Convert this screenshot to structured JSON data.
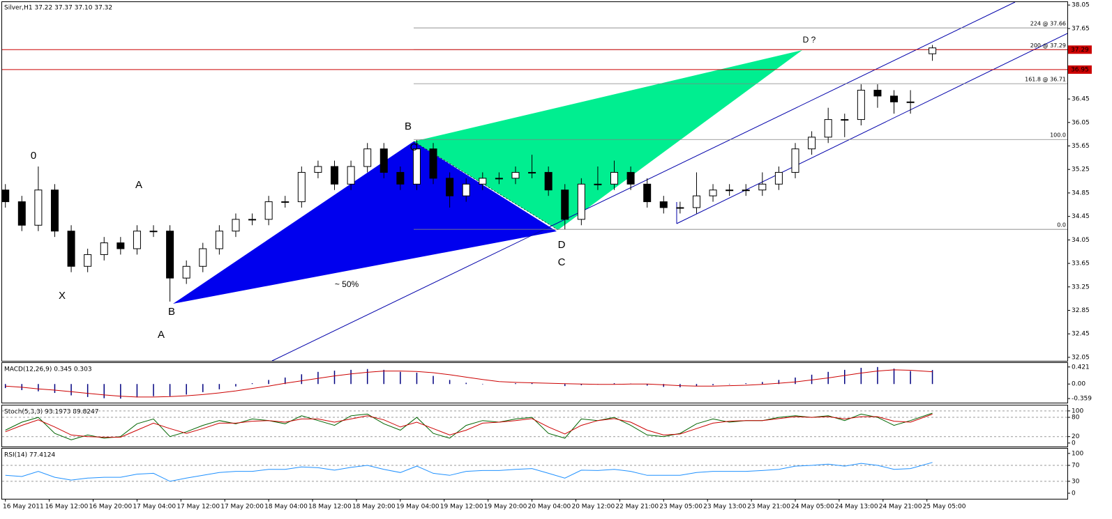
{
  "chart_data": [
    {
      "type": "candlestick",
      "title": "Silver,H1  37.22 37.37 37.10 37.32",
      "x": [
        0,
        3,
        6,
        9,
        12,
        15,
        18,
        21,
        24,
        27,
        30,
        33,
        36,
        39,
        42,
        45,
        48,
        51,
        54,
        57,
        60,
        63,
        66,
        69,
        72,
        75,
        78,
        81,
        84,
        87,
        90,
        93,
        96,
        99,
        102,
        105,
        108,
        111,
        114,
        117,
        120,
        123,
        126,
        129,
        132,
        135,
        138,
        141,
        144,
        147,
        150,
        153,
        156,
        159,
        162,
        165,
        169
      ],
      "open": [
        34.9,
        34.7,
        34.3,
        34.9,
        34.2,
        33.6,
        33.8,
        34.0,
        33.9,
        34.2,
        34.2,
        33.4,
        33.6,
        33.9,
        34.2,
        34.4,
        34.4,
        34.7,
        34.7,
        35.2,
        35.3,
        35.0,
        35.3,
        35.6,
        35.2,
        35.0,
        35.6,
        35.1,
        34.8,
        35.0,
        35.1,
        35.1,
        35.2,
        35.2,
        34.9,
        34.4,
        35.0,
        35.0,
        35.2,
        35.0,
        34.7,
        34.6,
        34.6,
        34.8,
        34.9,
        34.9,
        34.9,
        35.0,
        35.2,
        35.6,
        35.8,
        36.1,
        36.1,
        36.6,
        36.5,
        36.4,
        37.22
      ],
      "high": [
        35.0,
        34.8,
        35.3,
        35.0,
        34.3,
        33.9,
        34.1,
        34.1,
        34.3,
        34.3,
        34.3,
        33.7,
        34.0,
        34.3,
        34.5,
        34.5,
        34.8,
        34.8,
        35.3,
        35.4,
        35.4,
        35.4,
        35.7,
        35.7,
        35.3,
        35.75,
        35.7,
        35.2,
        35.1,
        35.2,
        35.2,
        35.3,
        35.5,
        35.3,
        35.0,
        35.1,
        35.3,
        35.4,
        35.3,
        35.1,
        34.8,
        34.7,
        35.2,
        35.0,
        35.0,
        35.0,
        35.2,
        35.3,
        35.7,
        35.9,
        36.3,
        36.2,
        36.7,
        36.7,
        36.6,
        36.6,
        37.37
      ],
      "low": [
        34.6,
        34.2,
        34.2,
        34.1,
        33.5,
        33.5,
        33.7,
        33.8,
        33.8,
        34.1,
        33.0,
        33.3,
        33.5,
        33.8,
        34.1,
        34.3,
        34.3,
        34.6,
        34.6,
        35.1,
        34.9,
        34.9,
        35.2,
        35.1,
        34.9,
        34.9,
        35.0,
        34.6,
        34.7,
        34.9,
        35.0,
        35.0,
        35.1,
        34.8,
        34.23,
        34.3,
        34.9,
        34.9,
        34.9,
        34.6,
        34.5,
        34.5,
        34.5,
        34.7,
        34.8,
        34.8,
        34.8,
        34.9,
        35.1,
        35.5,
        35.7,
        35.8,
        36.0,
        36.3,
        36.2,
        36.2,
        37.1
      ],
      "close": [
        34.7,
        34.3,
        34.9,
        34.2,
        33.6,
        33.8,
        34.0,
        33.9,
        34.2,
        34.2,
        33.4,
        33.6,
        33.9,
        34.2,
        34.4,
        34.4,
        34.7,
        34.7,
        35.2,
        35.3,
        35.0,
        35.3,
        35.6,
        35.2,
        35.0,
        35.6,
        35.1,
        34.8,
        35.0,
        35.1,
        35.1,
        35.2,
        35.2,
        34.9,
        34.4,
        35.0,
        35.0,
        35.2,
        35.0,
        34.7,
        34.6,
        34.6,
        34.8,
        34.9,
        34.9,
        34.9,
        35.0,
        35.2,
        35.6,
        35.8,
        36.1,
        36.1,
        36.6,
        36.5,
        36.4,
        36.4,
        37.32
      ],
      "up_color": "#ffffff",
      "down_color": "#000000",
      "outline_color": "#000000",
      "xlim": [
        -0.6,
        193.6
      ],
      "ylim": [
        31.99,
        38.1
      ],
      "yticks": [
        32.05,
        32.45,
        32.85,
        33.25,
        33.65,
        34.05,
        34.45,
        34.85,
        35.25,
        35.65,
        36.05,
        36.45,
        37.65,
        38.05
      ],
      "xticks": [
        {
          "value": 0,
          "label": "16 May 2011"
        },
        {
          "value": 8,
          "label": "16 May 12:00"
        },
        {
          "value": 16,
          "label": "16 May 20:00"
        },
        {
          "value": 24,
          "label": "17 May 04:00"
        },
        {
          "value": 32,
          "label": "17 May 12:00"
        },
        {
          "value": 40,
          "label": "17 May 20:00"
        },
        {
          "value": 48,
          "label": "18 May 04:00"
        },
        {
          "value": 56,
          "label": "18 May 12:00"
        },
        {
          "value": 64,
          "label": "18 May 20:00"
        },
        {
          "value": 72,
          "label": "19 May 04:00"
        },
        {
          "value": 80,
          "label": "19 May 12:00"
        },
        {
          "value": 88,
          "label": "19 May 20:00"
        },
        {
          "value": 96,
          "label": "20 May 04:00"
        },
        {
          "value": 104,
          "label": "20 May 12:00"
        },
        {
          "value": 112,
          "label": "22 May 21:00"
        },
        {
          "value": 120,
          "label": "23 May 05:00"
        },
        {
          "value": 128,
          "label": "23 May 13:00"
        },
        {
          "value": 136,
          "label": "23 May 21:00"
        },
        {
          "value": 144,
          "label": "24 May 05:00"
        },
        {
          "value": 152,
          "label": "24 May 13:00"
        },
        {
          "value": 160,
          "label": "24 May 21:00"
        },
        {
          "value": 168,
          "label": "25 May 05:00"
        }
      ],
      "price_lines": [
        {
          "value": 37.29,
          "color": "#cc0000"
        },
        {
          "value": 36.95,
          "color": "#cc0000"
        }
      ],
      "fib_levels": [
        {
          "label": "224 @ 37.66",
          "value": 37.66
        },
        {
          "label": "200 @ 37.29",
          "value": 37.29
        },
        {
          "label": "161.8 @ 36.71",
          "value": 36.71
        },
        {
          "label": "100.0",
          "value": 35.76
        },
        {
          "label": "0.0",
          "value": 34.23
        }
      ],
      "fib_color": "#808080",
      "annotations": [
        {
          "text": "0",
          "color": "#1a1a80"
        },
        {
          "text": "A",
          "color": "#1a1a80"
        },
        {
          "text": "X",
          "color": "#1a1a80"
        },
        {
          "text": "B",
          "color": "#1a1a80"
        },
        {
          "text": "A",
          "color": "#000000"
        },
        {
          "text": "B",
          "color": "#000000"
        },
        {
          "text": "C",
          "color": "#1a1a80"
        },
        {
          "text": "~ 50%",
          "color": "#cc0000"
        },
        {
          "text": "D",
          "color": "#1a1a80"
        },
        {
          "text": "C",
          "color": "#000000"
        },
        {
          "text": "D ?",
          "color": "#000000"
        }
      ]
    },
    {
      "type": "macd",
      "title": "MACD(12,26,9) 0.345 0.303",
      "ylim": [
        -0.46,
        0.52
      ],
      "yticks": [
        0.421,
        {
          "value": 0,
          "label": "0.00"
        },
        -0.359
      ],
      "histogram": {
        "color": "#000080",
        "values": [
          -0.1,
          -0.15,
          -0.18,
          -0.22,
          -0.28,
          -0.32,
          -0.35,
          -0.36,
          -0.33,
          -0.3,
          -0.3,
          -0.26,
          -0.2,
          -0.13,
          -0.06,
          0.02,
          0.1,
          0.16,
          0.24,
          0.3,
          0.33,
          0.35,
          0.37,
          0.35,
          0.3,
          0.28,
          0.2,
          0.1,
          0.03,
          -0.01,
          0.0,
          0.02,
          0.03,
          0.0,
          -0.05,
          -0.03,
          -0.01,
          0.02,
          0.01,
          -0.04,
          -0.07,
          -0.08,
          -0.05,
          -0.03,
          -0.01,
          0.02,
          0.05,
          0.1,
          0.16,
          0.23,
          0.3,
          0.35,
          0.4,
          0.42,
          0.38,
          0.32,
          0.345
        ]
      },
      "signal": {
        "color": "#cc0000",
        "values": [
          -0.05,
          -0.08,
          -0.12,
          -0.15,
          -0.19,
          -0.23,
          -0.27,
          -0.3,
          -0.32,
          -0.32,
          -0.31,
          -0.29,
          -0.26,
          -0.22,
          -0.17,
          -0.11,
          -0.05,
          0.02,
          0.08,
          0.14,
          0.2,
          0.25,
          0.29,
          0.32,
          0.32,
          0.31,
          0.28,
          0.23,
          0.17,
          0.11,
          0.06,
          0.04,
          0.03,
          0.02,
          0.01,
          0.0,
          -0.01,
          -0.01,
          0.0,
          0.0,
          -0.02,
          -0.04,
          -0.05,
          -0.05,
          -0.04,
          -0.03,
          -0.01,
          0.02,
          0.05,
          0.1,
          0.15,
          0.21,
          0.27,
          0.32,
          0.35,
          0.34,
          0.303
        ]
      }
    },
    {
      "type": "oscillator",
      "title": "Stoch(5,3,3) 93.1973 89.8247",
      "ylim": [
        -11,
        117
      ],
      "yticks": [
        100,
        80,
        20,
        0
      ],
      "level_lines": true,
      "series": [
        {
          "color": "#006400",
          "values": [
            40,
            65,
            80,
            30,
            10,
            25,
            15,
            20,
            60,
            75,
            20,
            35,
            55,
            70,
            60,
            75,
            70,
            60,
            85,
            70,
            55,
            85,
            90,
            60,
            40,
            80,
            30,
            15,
            55,
            70,
            65,
            75,
            80,
            30,
            15,
            75,
            70,
            80,
            55,
            25,
            20,
            30,
            60,
            75,
            65,
            70,
            70,
            80,
            85,
            80,
            85,
            70,
            90,
            80,
            55,
            70,
            93.1973
          ]
        },
        {
          "color": "#cc0000",
          "values": [
            35,
            55,
            72,
            50,
            25,
            20,
            18,
            18,
            40,
            62,
            45,
            30,
            45,
            62,
            62,
            68,
            70,
            65,
            75,
            75,
            65,
            75,
            85,
            72,
            50,
            65,
            45,
            25,
            40,
            62,
            65,
            70,
            76,
            50,
            28,
            55,
            70,
            76,
            65,
            40,
            25,
            28,
            45,
            62,
            68,
            70,
            70,
            76,
            82,
            80,
            82,
            75,
            82,
            82,
            68,
            65,
            89.8247
          ]
        }
      ]
    },
    {
      "type": "oscillator",
      "title": "RSI(14) 77.4124",
      "ylim": [
        -14,
        112
      ],
      "yticks": [
        100,
        70,
        30,
        0
      ],
      "level_lines": true,
      "series": [
        {
          "color": "#1e90ff",
          "values": [
            45,
            42,
            55,
            40,
            33,
            38,
            40,
            40,
            48,
            50,
            30,
            38,
            45,
            52,
            55,
            55,
            60,
            60,
            66,
            64,
            58,
            65,
            70,
            60,
            52,
            68,
            50,
            45,
            55,
            57,
            57,
            60,
            62,
            50,
            38,
            58,
            57,
            60,
            55,
            45,
            45,
            45,
            52,
            55,
            55,
            55,
            57,
            60,
            68,
            70,
            73,
            68,
            75,
            70,
            60,
            62,
            77.4124
          ]
        }
      ]
    }
  ]
}
